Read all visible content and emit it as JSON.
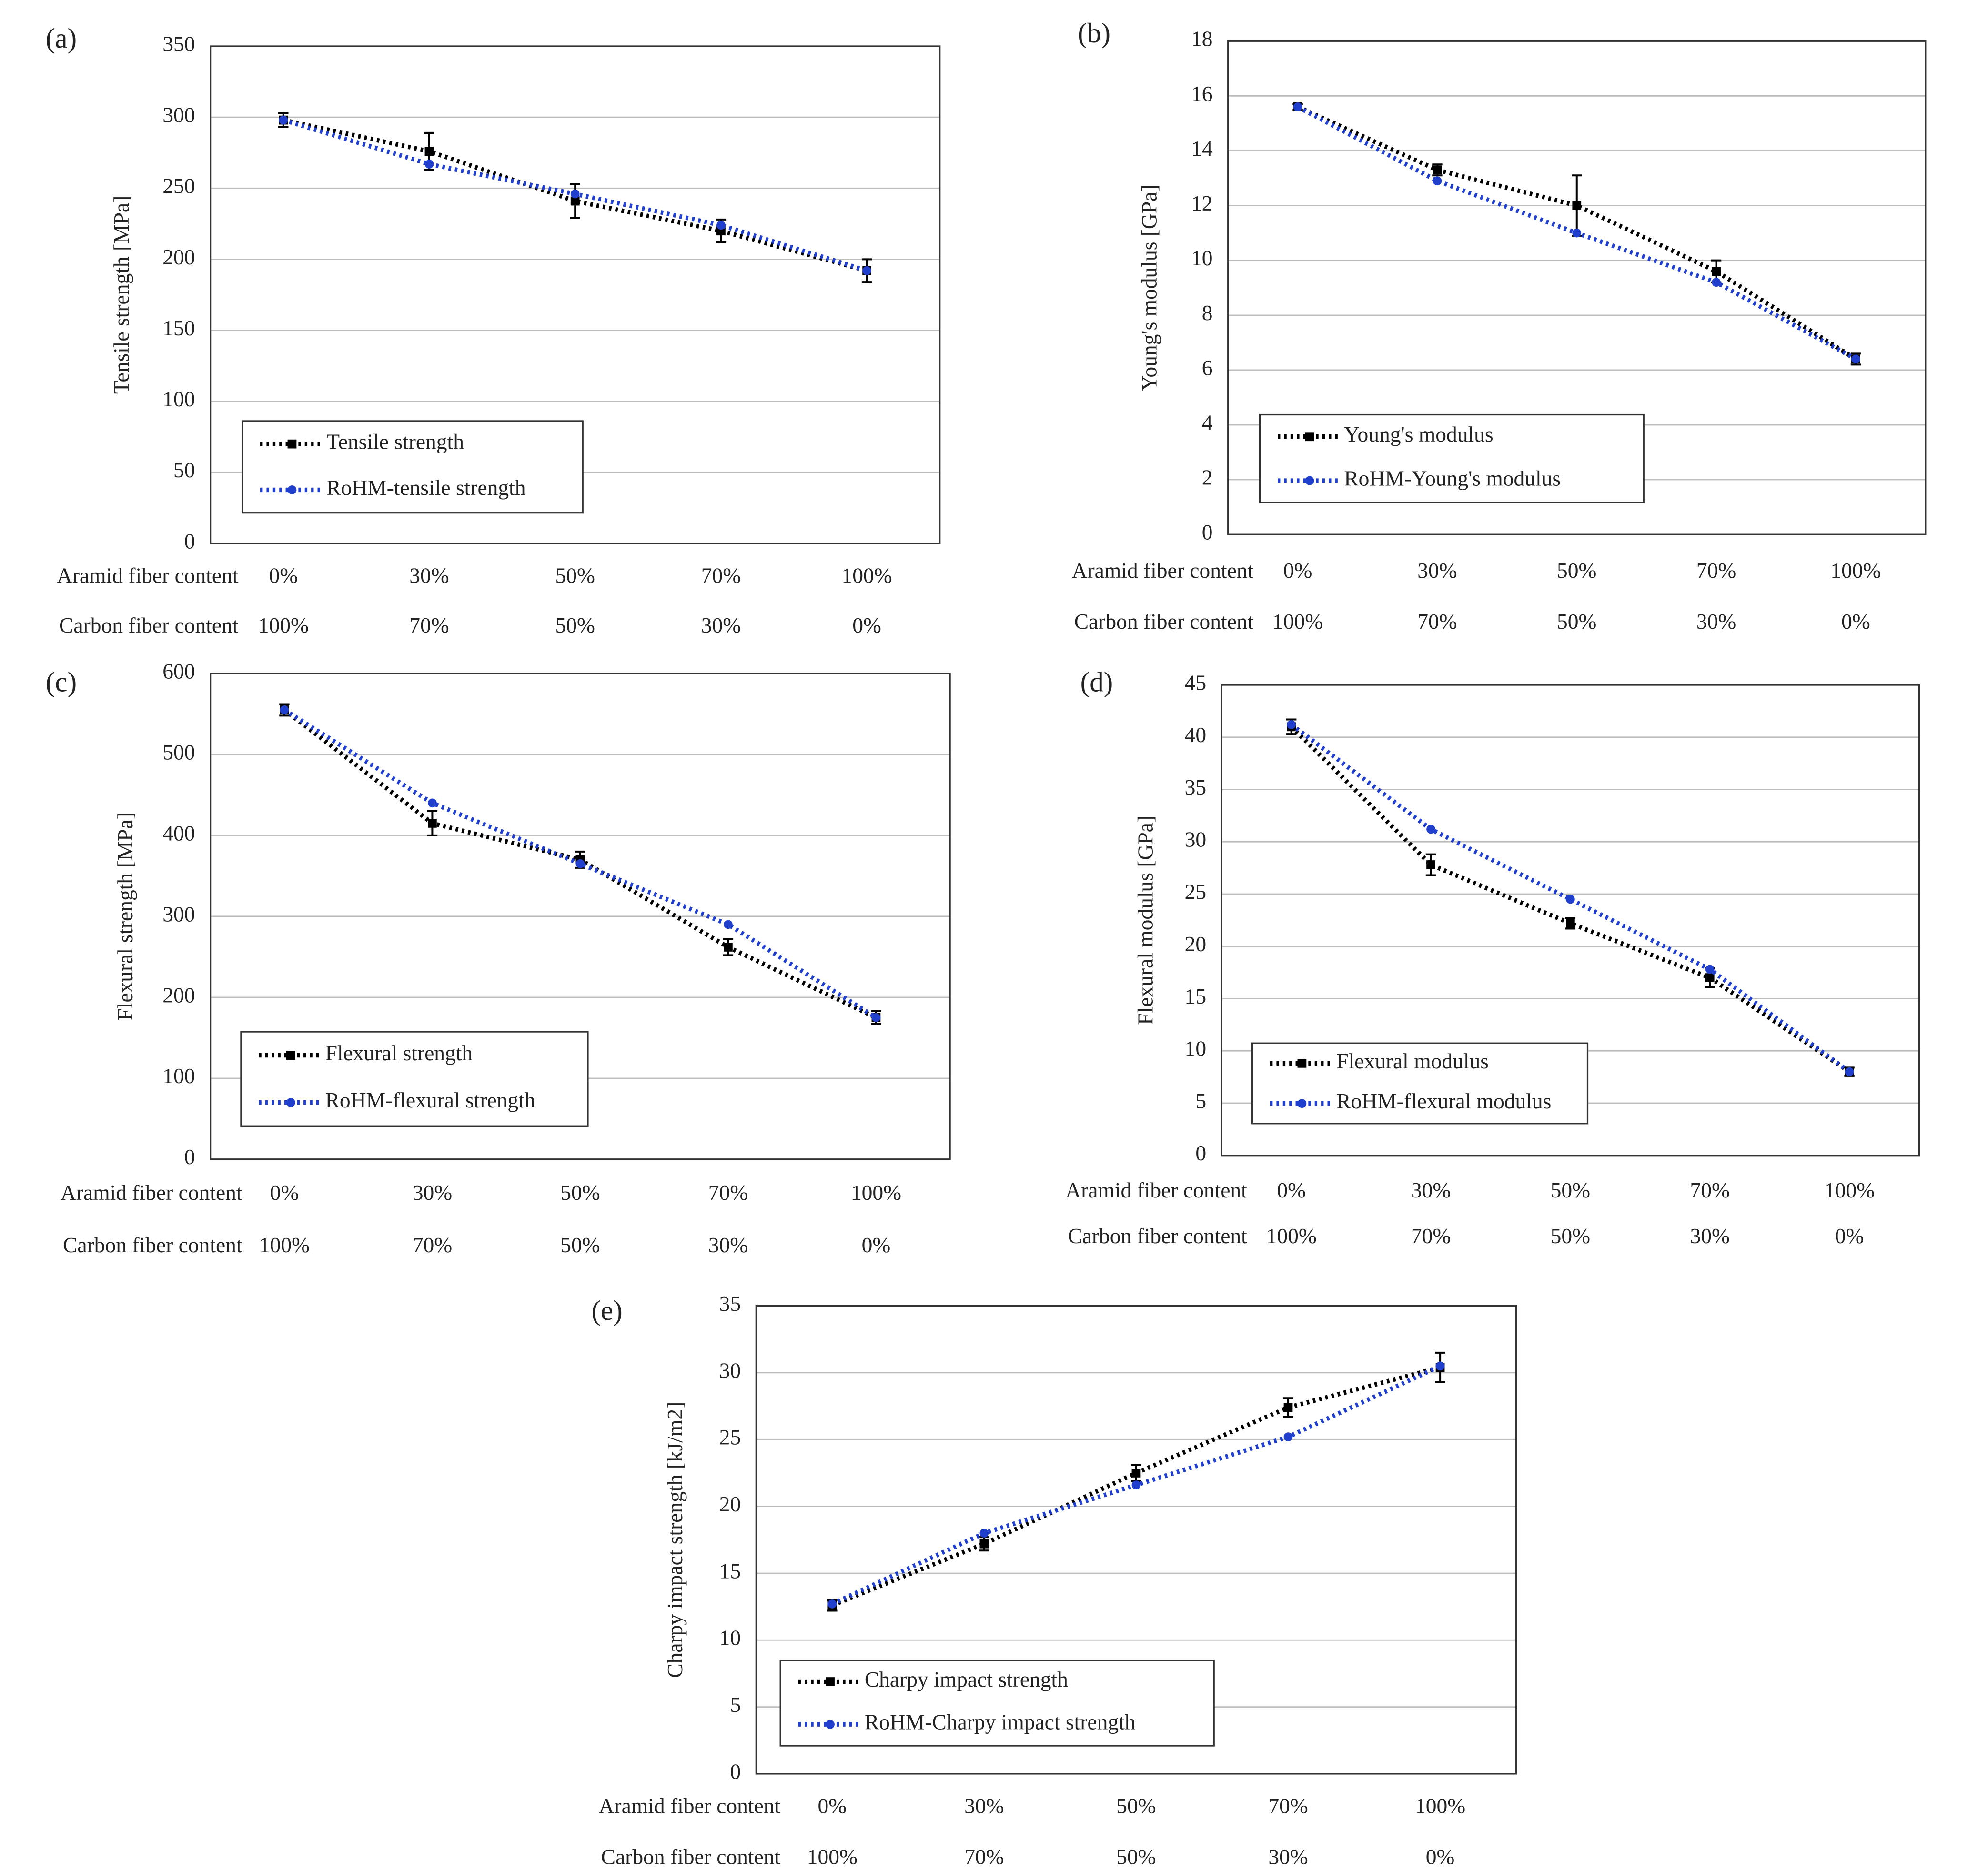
{
  "chart_data": [
    {
      "type": "line",
      "panel_label": "(a)",
      "y_label": "Tensile strength [MPa]",
      "category_titles": [
        "Aramid fiber content",
        "Carbon fiber content"
      ],
      "categories": [
        "0%",
        "30%",
        "50%",
        "70%",
        "100%"
      ],
      "categories_secondary": [
        "100%",
        "70%",
        "50%",
        "30%",
        "0%"
      ],
      "ylim": [
        0,
        350
      ],
      "yticks": [
        0,
        50,
        100,
        150,
        200,
        250,
        300,
        350
      ],
      "grid": true,
      "series": [
        {
          "name": "Tensile strength",
          "color": "#000000",
          "marker": "square",
          "values": [
            298,
            276,
            241,
            220,
            192
          ],
          "errors": [
            5,
            13,
            12,
            8,
            8
          ]
        },
        {
          "name": "RoHM-tensile strength",
          "color": "#1f3fcc",
          "marker": "circle",
          "values": [
            298,
            267,
            246,
            224,
            192
          ]
        }
      ]
    },
    {
      "type": "line",
      "panel_label": "(b)",
      "y_label": "Young's modulus [GPa]",
      "category_titles": [
        "Aramid fiber content",
        "Carbon fiber content"
      ],
      "categories": [
        "0%",
        "30%",
        "50%",
        "70%",
        "100%"
      ],
      "categories_secondary": [
        "100%",
        "70%",
        "50%",
        "30%",
        "0%"
      ],
      "ylim": [
        0,
        18
      ],
      "yticks": [
        0,
        2,
        4,
        6,
        8,
        10,
        12,
        14,
        16,
        18
      ],
      "grid": true,
      "series": [
        {
          "name": "Young's modulus",
          "color": "#000000",
          "marker": "square",
          "values": [
            15.6,
            13.3,
            12.0,
            9.6,
            6.4
          ],
          "errors": [
            0.1,
            0.2,
            1.1,
            0.4,
            0.2
          ]
        },
        {
          "name": "RoHM-Young's modulus",
          "color": "#1f3fcc",
          "marker": "circle",
          "values": [
            15.6,
            12.9,
            11.0,
            9.2,
            6.4
          ]
        }
      ]
    },
    {
      "type": "line",
      "panel_label": "(c)",
      "y_label": "Flexural strength [MPa]",
      "category_titles": [
        "Aramid fiber content",
        "Carbon fiber content"
      ],
      "categories": [
        "0%",
        "30%",
        "50%",
        "70%",
        "100%"
      ],
      "categories_secondary": [
        "100%",
        "70%",
        "50%",
        "30%",
        "0%"
      ],
      "ylim": [
        0,
        600
      ],
      "yticks": [
        0,
        100,
        200,
        300,
        400,
        500,
        600
      ],
      "grid": true,
      "series": [
        {
          "name": "Flexural strength",
          "color": "#000000",
          "marker": "square",
          "values": [
            555,
            415,
            370,
            262,
            175
          ],
          "errors": [
            7,
            15,
            10,
            10,
            8
          ]
        },
        {
          "name": "RoHM-flexural strength",
          "color": "#1f3fcc",
          "marker": "circle",
          "values": [
            555,
            440,
            365,
            290,
            175
          ]
        }
      ]
    },
    {
      "type": "line",
      "panel_label": "(d)",
      "y_label": "Flexural modulus [GPa]",
      "category_titles": [
        "Aramid fiber content",
        "Carbon fiber content"
      ],
      "categories": [
        "0%",
        "30%",
        "50%",
        "70%",
        "100%"
      ],
      "categories_secondary": [
        "100%",
        "70%",
        "50%",
        "30%",
        "0%"
      ],
      "ylim": [
        0,
        45
      ],
      "yticks": [
        0,
        5,
        10,
        15,
        20,
        25,
        30,
        35,
        40,
        45
      ],
      "grid": true,
      "series": [
        {
          "name": "Flexural modulus",
          "color": "#000000",
          "marker": "square",
          "values": [
            41.0,
            27.8,
            22.2,
            17.0,
            8.0
          ],
          "errors": [
            0.7,
            1.0,
            0.5,
            0.9,
            0.4
          ]
        },
        {
          "name": "RoHM-flexural modulus",
          "color": "#1f3fcc",
          "marker": "circle",
          "values": [
            41.2,
            31.2,
            24.5,
            17.8,
            8.0
          ]
        }
      ]
    },
    {
      "type": "line",
      "panel_label": "(e)",
      "y_label": "Charpy impact strength [kJ/m2]",
      "category_titles": [
        "Aramid fiber content",
        "Carbon fiber content"
      ],
      "categories": [
        "0%",
        "30%",
        "50%",
        "70%",
        "100%"
      ],
      "categories_secondary": [
        "100%",
        "70%",
        "50%",
        "30%",
        "0%"
      ],
      "ylim": [
        0,
        35
      ],
      "yticks": [
        0,
        5,
        10,
        15,
        20,
        25,
        30,
        35
      ],
      "grid": true,
      "series": [
        {
          "name": "Charpy impact strength",
          "color": "#000000",
          "marker": "square",
          "values": [
            12.6,
            17.2,
            22.5,
            27.4,
            30.4
          ],
          "errors": [
            0.4,
            0.5,
            0.6,
            0.7,
            1.1
          ]
        },
        {
          "name": "RoHM-Charpy impact strength",
          "color": "#1f3fcc",
          "marker": "circle",
          "values": [
            12.7,
            18.0,
            21.6,
            25.2,
            30.5
          ]
        }
      ]
    }
  ]
}
